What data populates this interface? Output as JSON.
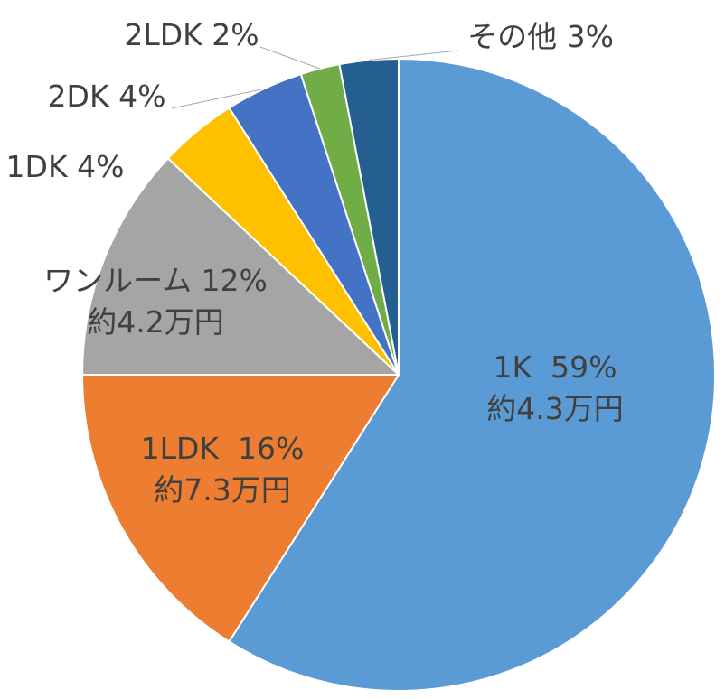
{
  "chart_data": {
    "type": "pie",
    "slices": [
      {
        "label": "1K",
        "value": 59,
        "value_text": "59%",
        "price": "約4.3万円",
        "color": "#5b9bd5"
      },
      {
        "label": "1LDK",
        "value": 16,
        "value_text": "16%",
        "price": "約7.3万円",
        "color": "#ed7d31"
      },
      {
        "label": "ワンルーム",
        "value": 12,
        "value_text": "12%",
        "price": "約4.2万円",
        "color": "#a5a5a5"
      },
      {
        "label": "1DK",
        "value": 4,
        "value_text": "4%",
        "color": "#ffc000"
      },
      {
        "label": "2DK",
        "value": 4,
        "value_text": "4%",
        "color": "#4472c4"
      },
      {
        "label": "2LDK",
        "value": 2,
        "value_text": "2%",
        "color": "#70ad47"
      },
      {
        "label": "その他",
        "value": 3,
        "value_text": "3%",
        "color": "#255e91"
      }
    ]
  }
}
